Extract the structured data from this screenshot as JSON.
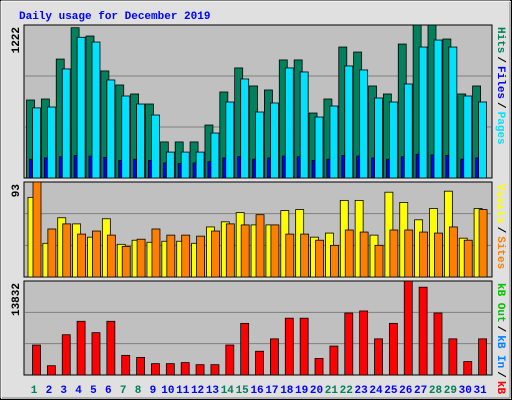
{
  "chart_data": [
    {
      "type": "bar",
      "title": "Daily usage for December 2019",
      "legend_separator": "/",
      "ylim": [
        0,
        1222
      ],
      "yticks": [
        1222
      ],
      "grid": true,
      "series": [
        {
          "name": "Hits",
          "color": "#00805c",
          "values": [
            623,
            631,
            950,
            1200,
            1134,
            855,
            743,
            671,
            591,
            288,
            288,
            288,
            423,
            687,
            879,
            735,
            703,
            943,
            943,
            519,
            631,
            1046,
            1006,
            735,
            671,
            1070,
            1222,
            1222,
            1110,
            671,
            735
          ]
        },
        {
          "name": "Files",
          "color": "#0000ff",
          "values": [
            150,
            160,
            170,
            180,
            175,
            165,
            140,
            150,
            140,
            120,
            115,
            120,
            130,
            160,
            170,
            150,
            160,
            175,
            170,
            140,
            150,
            180,
            175,
            160,
            150,
            170,
            190,
            185,
            180,
            150,
            160
          ]
        },
        {
          "name": "Pages",
          "color": "#00e0ff",
          "values": [
            560,
            567,
            871,
            1124,
            1086,
            783,
            655,
            591,
            503,
            207,
            207,
            207,
            359,
            607,
            791,
            527,
            599,
            879,
            847,
            487,
            575,
            895,
            863,
            639,
            607,
            751,
            1046,
            1102,
            1046,
            655,
            607
          ]
        }
      ]
    },
    {
      "type": "bar",
      "legend_separator": "/",
      "ylim": [
        0,
        93
      ],
      "yticks": [
        93
      ],
      "grid": true,
      "series": [
        {
          "name": "Visits",
          "color": "#ffff00",
          "values": [
            78,
            33,
            58,
            52,
            39,
            57,
            32,
            36,
            34,
            35,
            35,
            33,
            49,
            54,
            63,
            51,
            51,
            65,
            66,
            39,
            43,
            75,
            75,
            41,
            83,
            73,
            56,
            67,
            84,
            38,
            67
          ]
        },
        {
          "name": "Sites",
          "color": "#ff8000",
          "values": [
            93,
            47,
            52,
            42,
            45,
            41,
            30,
            37,
            47,
            41,
            41,
            40,
            45,
            52,
            51,
            61,
            51,
            42,
            42,
            36,
            31,
            46,
            44,
            31,
            46,
            46,
            44,
            43,
            49,
            36,
            66
          ]
        }
      ]
    },
    {
      "type": "bar",
      "legend_separator": "/",
      "ylim": [
        0,
        13832
      ],
      "yticks": [
        13832
      ],
      "grid": true,
      "categories": [
        "1",
        "2",
        "3",
        "4",
        "5",
        "6",
        "7",
        "8",
        "9",
        "10",
        "11",
        "12",
        "13",
        "14",
        "15",
        "16",
        "17",
        "18",
        "19",
        "20",
        "21",
        "22",
        "23",
        "24",
        "25",
        "26",
        "27",
        "28",
        "29",
        "30",
        "31"
      ],
      "category_colors": [
        "#00805c",
        "#0000ff",
        "#0000ff",
        "#0000ff",
        "#0000ff",
        "#0000ff",
        "#00805c",
        "#00805c",
        "#0000ff",
        "#0000ff",
        "#0000ff",
        "#0000ff",
        "#0000ff",
        "#00805c",
        "#00805c",
        "#0000ff",
        "#0000ff",
        "#0000ff",
        "#0000ff",
        "#0000ff",
        "#00805c",
        "#00805c",
        "#0000ff",
        "#0000ff",
        "#0000ff",
        "#0000ff",
        "#0000ff",
        "#00805c",
        "#00805c",
        "#0000ff",
        "#0000ff"
      ],
      "series": [
        {
          "name": "kB Out",
          "color": "#00c000",
          "values": [
            0,
            0,
            0,
            0,
            0,
            0,
            0,
            0,
            0,
            0,
            0,
            0,
            0,
            0,
            0,
            0,
            0,
            0,
            0,
            0,
            0,
            0,
            0,
            0,
            0,
            0,
            0,
            0,
            0,
            0,
            0
          ]
        },
        {
          "name": "kB In",
          "color": "#0080ff",
          "values": [
            0,
            0,
            0,
            0,
            0,
            0,
            0,
            0,
            0,
            0,
            0,
            0,
            0,
            0,
            0,
            0,
            0,
            0,
            0,
            0,
            0,
            0,
            0,
            0,
            0,
            0,
            0,
            0,
            0,
            0,
            0
          ]
        },
        {
          "name": "kB F",
          "color": "#ff0000",
          "values": [
            4408,
            1368,
            5928,
            7904,
            6232,
            7904,
            2888,
            2584,
            1672,
            1672,
            1824,
            1520,
            1520,
            4408,
            7600,
            3496,
            5320,
            8360,
            8360,
            2432,
            4256,
            9120,
            9424,
            5320,
            7600,
            13832,
            12920,
            9120,
            5320,
            1976,
            5320
          ]
        }
      ]
    }
  ]
}
